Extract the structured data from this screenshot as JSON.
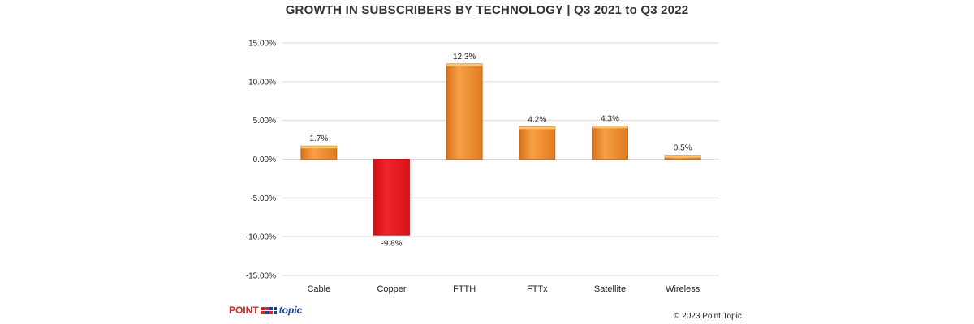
{
  "chart_data": {
    "type": "bar",
    "title": "GROWTH IN SUBSCRIBERS BY TECHNOLOGY | Q3 2021 to Q3 2022",
    "categories": [
      "Cable",
      "Copper",
      "FTTH",
      "FTTx",
      "Satellite",
      "Wireless"
    ],
    "values": [
      1.7,
      -9.8,
      12.3,
      4.2,
      4.3,
      0.5
    ],
    "data_labels": [
      "1.7%",
      "-9.8%",
      "12.3%",
      "4.2%",
      "4.3%",
      "0.5%"
    ],
    "yticks": [
      15,
      10,
      5,
      0,
      -5,
      -10,
      -15
    ],
    "ytick_labels": [
      "15.00%",
      "10.00%",
      "5.00%",
      "0.00%",
      "-5.00%",
      "-10.00%",
      "-15.00%"
    ],
    "ylim": [
      -15,
      15
    ],
    "grid": true,
    "legend": "none",
    "xlabel": "",
    "ylabel": "",
    "colors": {
      "positive": "#f28c28",
      "negative": "#e8141b",
      "grid": "#d9d9d9"
    }
  },
  "footer": {
    "logo_text_a": "POINT",
    "logo_text_b": "topic",
    "copyright": "© 2023 Point Topic"
  }
}
